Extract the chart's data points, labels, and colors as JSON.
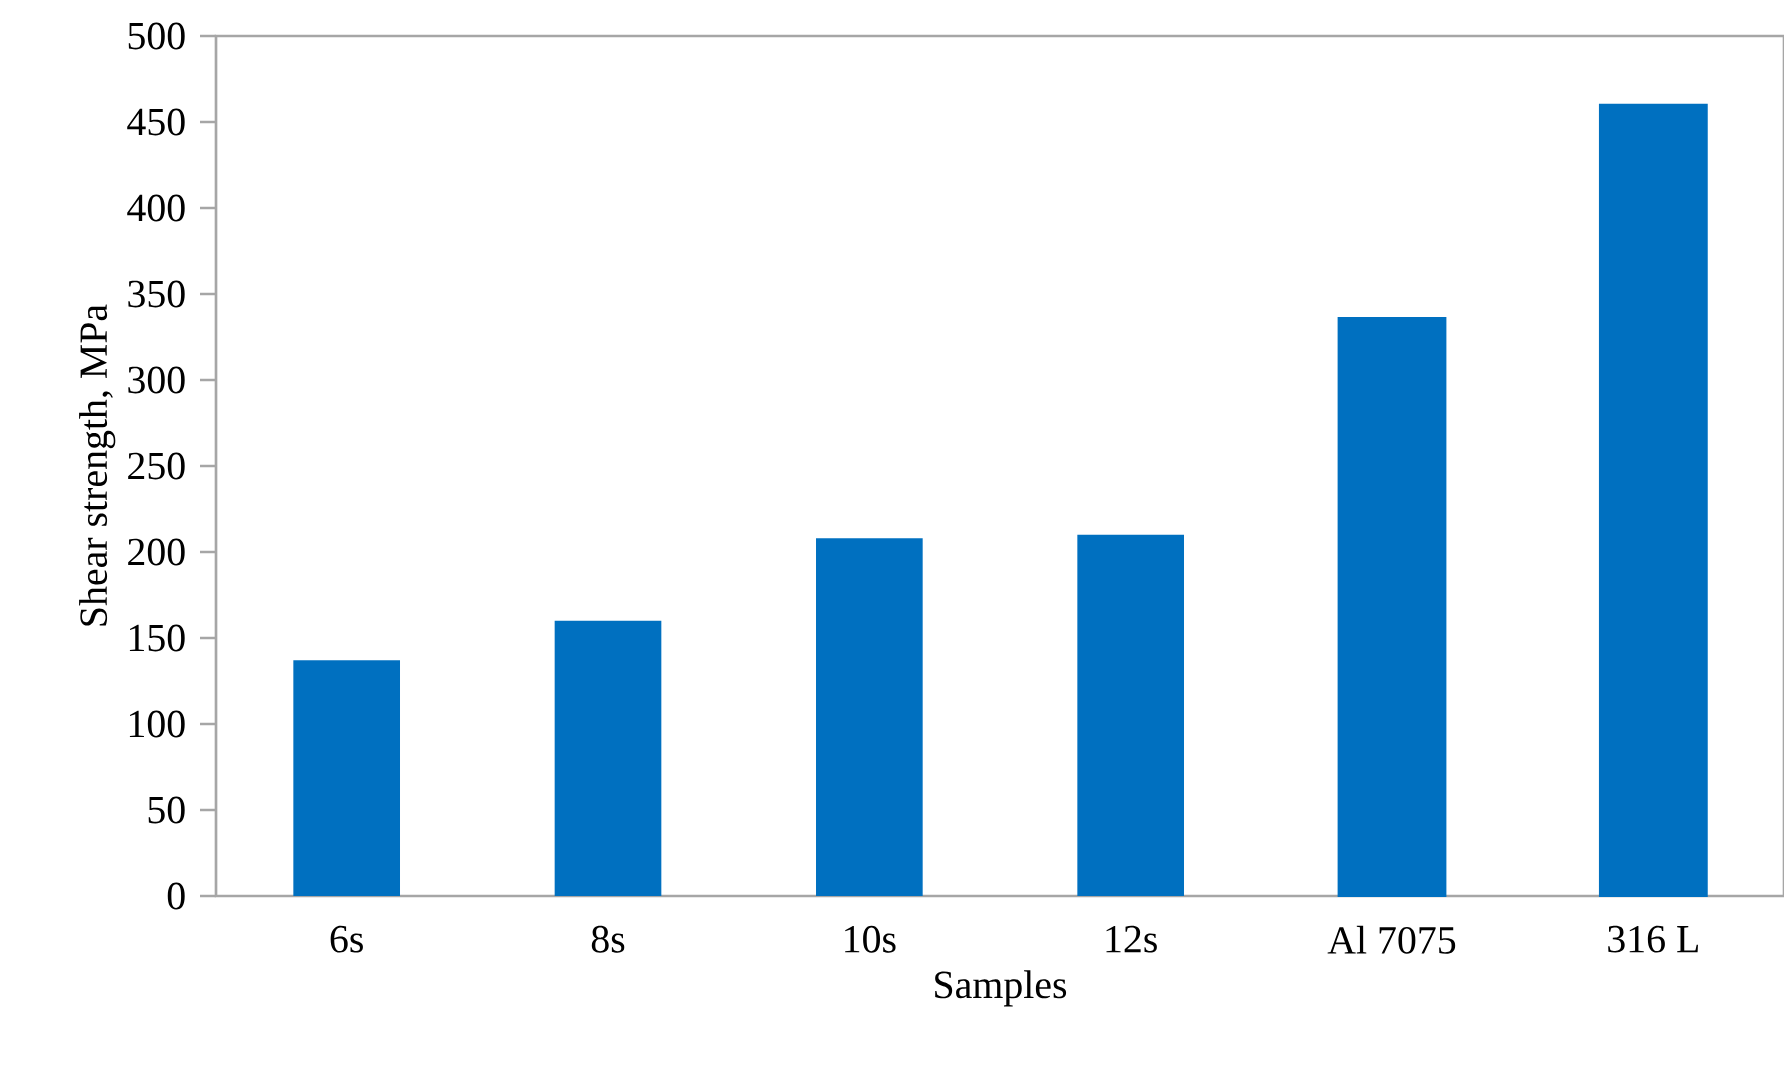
{
  "chart_data": {
    "type": "bar",
    "xlabel": "Samples",
    "ylabel": "Shear strength, MPa",
    "categories": [
      "6s",
      "8s",
      "10s",
      "12s",
      "Al 7075",
      "316 L"
    ],
    "series": [
      {
        "color": "#0070c0",
        "values": [
          137,
          160,
          208,
          210,
          null,
          null
        ]
      },
      {
        "color": "#0070c0",
        "values": [
          null,
          null,
          null,
          null,
          336,
          460
        ]
      }
    ],
    "ylim": [
      0,
      500
    ],
    "yticks": [
      0,
      50,
      100,
      150,
      200,
      250,
      300,
      350,
      400,
      450,
      500
    ],
    "grid": false
  }
}
